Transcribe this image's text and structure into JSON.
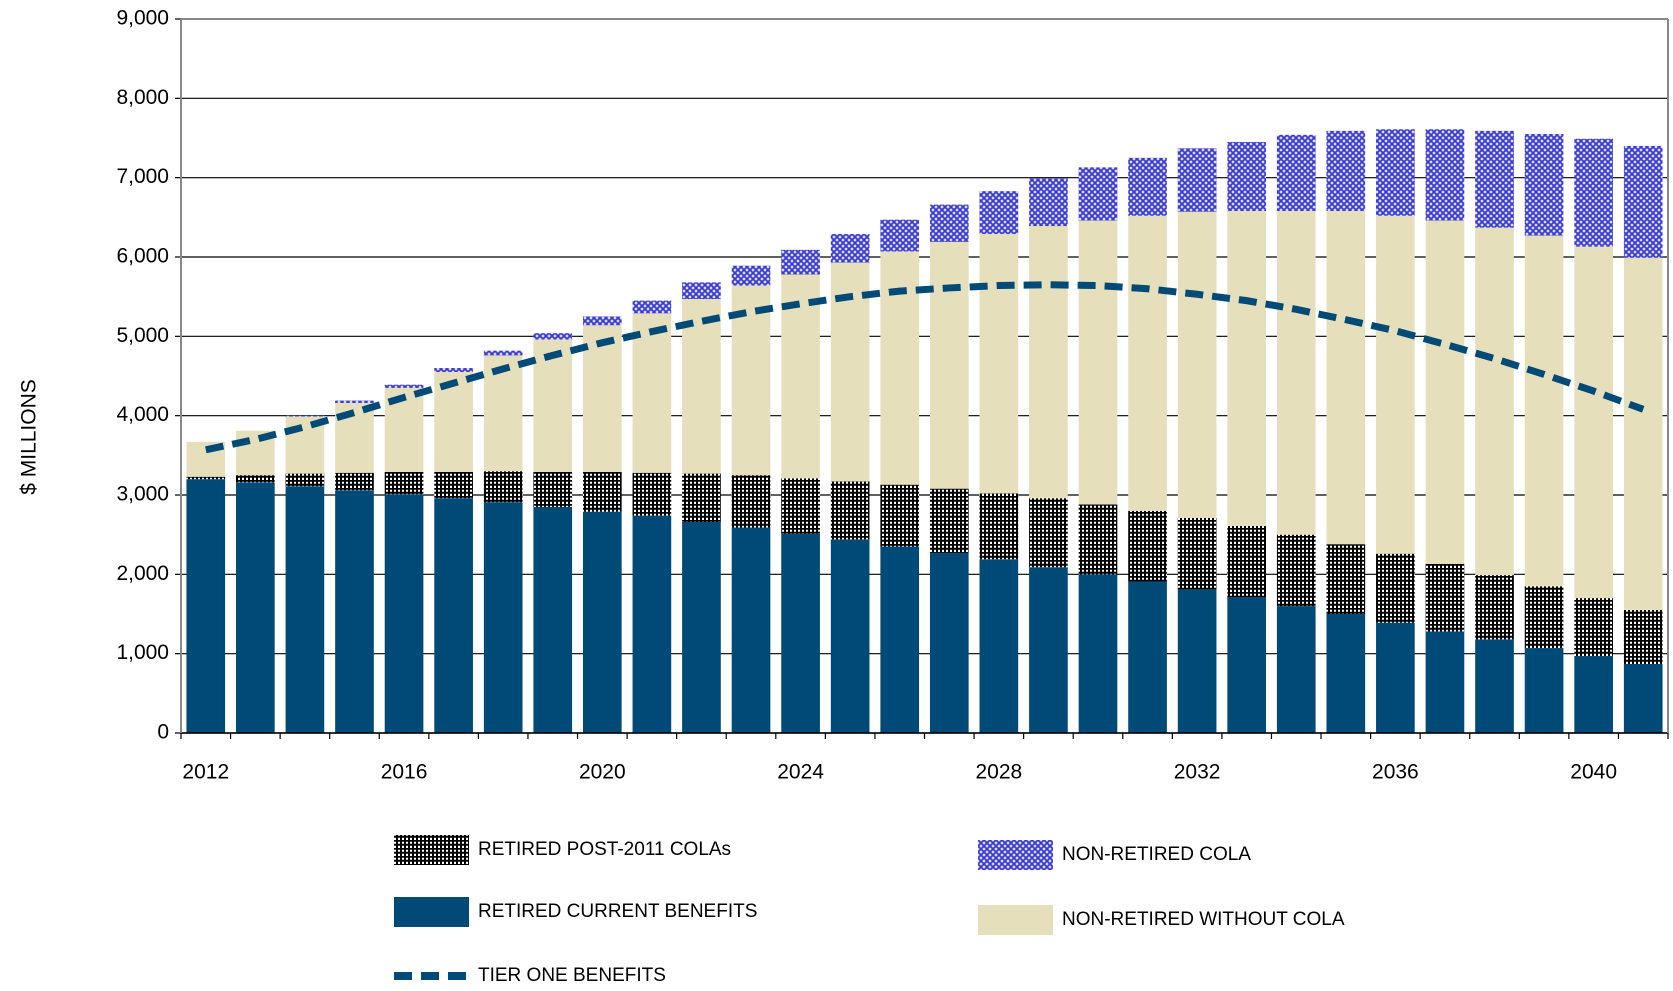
{
  "chart_data": {
    "type": "bar",
    "stacked": true,
    "y_label": "$ MILLIONS",
    "categories": [
      "2012",
      null,
      null,
      null,
      "2016",
      null,
      null,
      null,
      "2020",
      null,
      null,
      null,
      "2024",
      null,
      null,
      null,
      "2028",
      null,
      null,
      null,
      "2032",
      null,
      null,
      null,
      "2036",
      null,
      null,
      null,
      "2040",
      null
    ],
    "ylim": [
      0,
      9000
    ],
    "yticks": [
      0,
      {
        "value": 1000,
        "label": "1,000"
      },
      {
        "value": 2000,
        "label": "2,000"
      },
      {
        "value": 3000,
        "label": "3,000"
      },
      {
        "value": 4000,
        "label": "4,000"
      },
      {
        "value": 5000,
        "label": "5,000"
      },
      {
        "value": 6000,
        "label": "6,000"
      },
      {
        "value": 7000,
        "label": "7,000"
      },
      {
        "value": 8000,
        "label": "8,000"
      },
      {
        "value": 9000,
        "label": "9,000"
      }
    ],
    "grid": true,
    "series": [
      {
        "name": "RETIRED CURRENT BENEFITS",
        "color": "#004a78",
        "values": [
          3200,
          3160,
          3110,
          3060,
          3010,
          2960,
          2910,
          2850,
          2790,
          2740,
          2660,
          2590,
          2510,
          2440,
          2350,
          2270,
          2190,
          2090,
          2000,
          1910,
          1810,
          1710,
          1600,
          1500,
          1390,
          1280,
          1180,
          1070,
          970,
          870
        ]
      },
      {
        "name": "RETIRED POST-2011 COLAs",
        "color": "#000000",
        "pattern": "grid",
        "values": [
          30,
          90,
          160,
          220,
          280,
          330,
          390,
          440,
          500,
          540,
          610,
          660,
          700,
          730,
          780,
          810,
          830,
          870,
          880,
          890,
          900,
          900,
          900,
          880,
          870,
          850,
          810,
          780,
          730,
          680
        ]
      },
      {
        "name": "NON-RETIRED WITHOUT COLA",
        "color": "#e6dfbc",
        "values": [
          440,
          560,
          720,
          880,
          1060,
          1260,
          1460,
          1670,
          1850,
          2010,
          2200,
          2390,
          2570,
          2760,
          2940,
          3110,
          3270,
          3430,
          3580,
          3720,
          3860,
          3970,
          4080,
          4200,
          4260,
          4330,
          4380,
          4420,
          4430,
          4440
        ]
      },
      {
        "name": "NON-RETIRED COLA",
        "color": "#3a3ad0",
        "pattern": "check",
        "values": [
          0,
          0,
          10,
          30,
          40,
          50,
          60,
          80,
          110,
          160,
          210,
          250,
          310,
          360,
          400,
          470,
          540,
          600,
          670,
          730,
          800,
          870,
          960,
          1010,
          1090,
          1150,
          1220,
          1280,
          1360,
          1410
        ]
      },
      {
        "name": "TIER ONE BENEFITS",
        "type": "line",
        "dashed": true,
        "color": "#004a78",
        "values": [
          3570,
          3700,
          3860,
          4040,
          4230,
          4410,
          4590,
          4760,
          4920,
          5060,
          5190,
          5310,
          5410,
          5500,
          5570,
          5610,
          5640,
          5650,
          5640,
          5600,
          5530,
          5450,
          5340,
          5210,
          5070,
          4900,
          4720,
          4520,
          4310,
          4080
        ]
      }
    ]
  }
}
